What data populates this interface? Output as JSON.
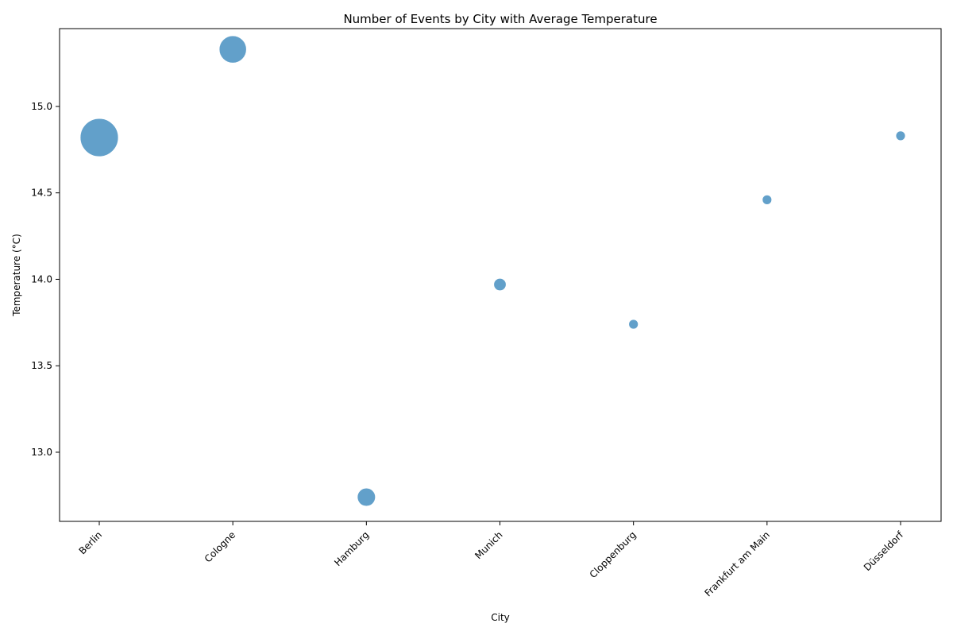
{
  "chart_data": {
    "type": "scatter",
    "title": "Number of Events by City with Average Temperature",
    "xlabel": "City",
    "ylabel": "Temperature (°C)",
    "categories": [
      "Berlin",
      "Cologne",
      "Hamburg",
      "Munich",
      "Cloppenburg",
      "Frankfurt am Main",
      "Düsseldorf"
    ],
    "points": [
      {
        "x": "Berlin",
        "y": 14.82,
        "size_level": 1.0
      },
      {
        "x": "Cologne",
        "y": 15.33,
        "size_level": 0.62
      },
      {
        "x": "Hamburg",
        "y": 12.74,
        "size_level": 0.3
      },
      {
        "x": "Munich",
        "y": 13.97,
        "size_level": 0.1
      },
      {
        "x": "Cloppenburg",
        "y": 13.74,
        "size_level": 0.0
      },
      {
        "x": "Frankfurt am Main",
        "y": 14.46,
        "size_level": 0.0
      },
      {
        "x": "Düsseldorf",
        "y": 14.83,
        "size_level": 0.0
      }
    ],
    "ylim": [
      12.6,
      15.45
    ],
    "yticks": [
      13.0,
      13.5,
      14.0,
      14.5,
      15.0
    ],
    "ytick_labels": [
      "13.0",
      "13.5",
      "14.0",
      "14.5",
      "15.0"
    ],
    "marker_color": "#1f77b4",
    "marker_alpha": 0.7,
    "grid": false,
    "legend": "none"
  }
}
